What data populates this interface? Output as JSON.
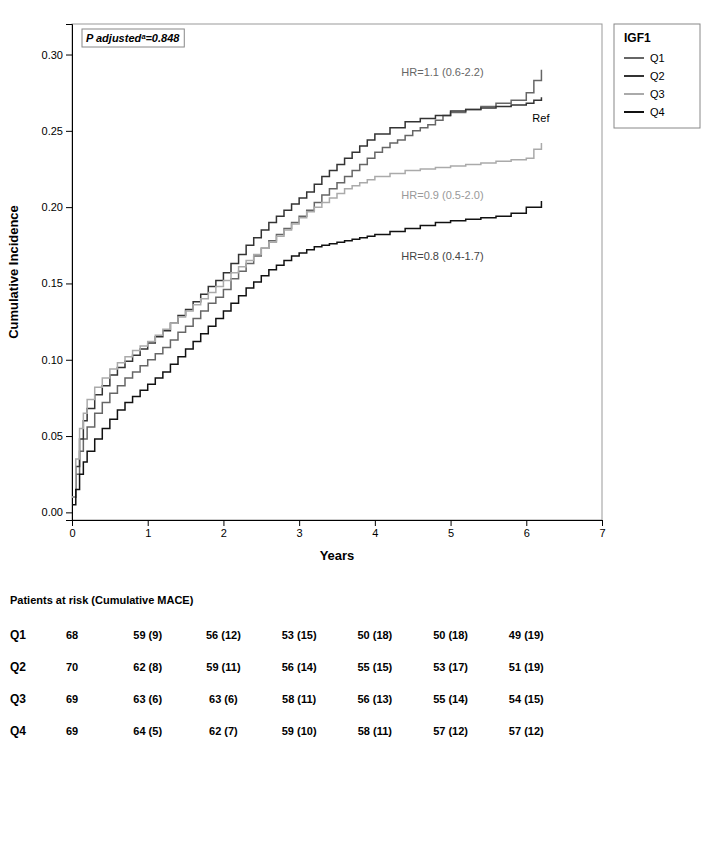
{
  "chart_data": {
    "type": "step",
    "xlabel": "Years",
    "ylabel": "Cumulative Incidence",
    "xlim": [
      0,
      7
    ],
    "ylim": [
      -0.005,
      0.32
    ],
    "xticks": [
      0,
      1,
      2,
      3,
      4,
      5,
      6,
      7
    ],
    "yticks": [
      {
        "value": 0.0,
        "label": "0.00"
      },
      0.05,
      {
        "value": 0.1,
        "label": "0.10"
      },
      0.15,
      {
        "value": 0.2,
        "label": "0.20"
      },
      0.25,
      {
        "value": 0.3,
        "label": "0.30"
      }
    ],
    "grid": false,
    "legend": "right",
    "legend_title": "IGF1",
    "annotations": [
      {
        "text": "P adjustedᵃ=0.848"
      },
      {
        "text": "HR=1.1 (0.6-2.2)",
        "x": 4.35,
        "y": 0.288,
        "color": "#666666"
      },
      {
        "text": "Ref",
        "x": 6.08,
        "y": 0.258,
        "color": "#000000"
      },
      {
        "text": "HR=0.9 (0.5-2.0)",
        "x": 4.35,
        "y": 0.207,
        "color": "#999999"
      },
      {
        "text": "HR=0.8 (0.4-1.7)",
        "x": 4.35,
        "y": 0.167,
        "color": "#444444"
      }
    ],
    "series": [
      {
        "name": "Q1",
        "color": "#666666",
        "x": [
          0,
          0.05,
          0.1,
          0.15,
          0.2,
          0.3,
          0.4,
          0.5,
          0.6,
          0.7,
          0.8,
          0.9,
          1.0,
          1.1,
          1.2,
          1.3,
          1.4,
          1.5,
          1.6,
          1.7,
          1.8,
          1.9,
          2.0,
          2.1,
          2.2,
          2.3,
          2.4,
          2.5,
          2.6,
          2.7,
          2.8,
          2.9,
          3.0,
          3.1,
          3.2,
          3.3,
          3.4,
          3.5,
          3.6,
          3.7,
          3.8,
          3.9,
          4.0,
          4.1,
          4.2,
          4.3,
          4.4,
          4.5,
          4.6,
          4.7,
          4.8,
          4.9,
          5.0,
          5.2,
          5.4,
          5.6,
          5.8,
          6.0,
          6.1,
          6.2
        ],
        "values": [
          0.01,
          0.025,
          0.04,
          0.048,
          0.056,
          0.065,
          0.072,
          0.078,
          0.083,
          0.088,
          0.092,
          0.096,
          0.1,
          0.104,
          0.108,
          0.113,
          0.118,
          0.122,
          0.127,
          0.132,
          0.137,
          0.141,
          0.146,
          0.153,
          0.158,
          0.163,
          0.168,
          0.173,
          0.178,
          0.182,
          0.186,
          0.19,
          0.194,
          0.198,
          0.203,
          0.208,
          0.212,
          0.216,
          0.22,
          0.224,
          0.228,
          0.232,
          0.236,
          0.239,
          0.242,
          0.244,
          0.247,
          0.25,
          0.252,
          0.254,
          0.257,
          0.26,
          0.262,
          0.264,
          0.266,
          0.268,
          0.27,
          0.275,
          0.283,
          0.29
        ]
      },
      {
        "name": "Q2",
        "color": "#333333",
        "x": [
          0,
          0.05,
          0.1,
          0.15,
          0.2,
          0.3,
          0.4,
          0.5,
          0.6,
          0.7,
          0.8,
          0.9,
          1.0,
          1.1,
          1.2,
          1.3,
          1.4,
          1.5,
          1.6,
          1.7,
          1.8,
          1.9,
          2.0,
          2.1,
          2.2,
          2.3,
          2.4,
          2.5,
          2.6,
          2.7,
          2.8,
          2.9,
          3.0,
          3.1,
          3.2,
          3.3,
          3.4,
          3.5,
          3.6,
          3.7,
          3.8,
          3.9,
          4.0,
          4.2,
          4.4,
          4.6,
          4.8,
          5.0,
          5.2,
          5.4,
          5.6,
          5.8,
          6.0,
          6.1,
          6.2
        ],
        "values": [
          0.01,
          0.03,
          0.048,
          0.06,
          0.068,
          0.077,
          0.083,
          0.09,
          0.095,
          0.099,
          0.103,
          0.107,
          0.111,
          0.115,
          0.119,
          0.124,
          0.129,
          0.133,
          0.138,
          0.143,
          0.148,
          0.152,
          0.157,
          0.163,
          0.169,
          0.175,
          0.18,
          0.185,
          0.19,
          0.194,
          0.198,
          0.202,
          0.206,
          0.21,
          0.215,
          0.22,
          0.224,
          0.228,
          0.232,
          0.236,
          0.24,
          0.244,
          0.248,
          0.252,
          0.256,
          0.258,
          0.26,
          0.263,
          0.264,
          0.265,
          0.266,
          0.267,
          0.268,
          0.27,
          0.272
        ]
      },
      {
        "name": "Q3",
        "color": "#aaaaaa",
        "x": [
          0,
          0.05,
          0.1,
          0.15,
          0.2,
          0.3,
          0.4,
          0.5,
          0.6,
          0.7,
          0.8,
          0.9,
          1.0,
          1.1,
          1.2,
          1.3,
          1.4,
          1.5,
          1.6,
          1.7,
          1.8,
          1.9,
          2.0,
          2.1,
          2.2,
          2.3,
          2.4,
          2.5,
          2.6,
          2.7,
          2.8,
          2.9,
          3.0,
          3.1,
          3.2,
          3.3,
          3.4,
          3.5,
          3.6,
          3.7,
          3.8,
          3.9,
          4.0,
          4.2,
          4.4,
          4.6,
          4.8,
          5.0,
          5.2,
          5.4,
          5.6,
          5.8,
          6.0,
          6.1,
          6.2
        ],
        "values": [
          0.01,
          0.035,
          0.055,
          0.065,
          0.074,
          0.082,
          0.088,
          0.094,
          0.098,
          0.102,
          0.106,
          0.109,
          0.112,
          0.116,
          0.12,
          0.124,
          0.128,
          0.132,
          0.136,
          0.14,
          0.144,
          0.148,
          0.152,
          0.157,
          0.161,
          0.165,
          0.169,
          0.173,
          0.177,
          0.181,
          0.185,
          0.189,
          0.193,
          0.197,
          0.2,
          0.203,
          0.206,
          0.209,
          0.212,
          0.214,
          0.216,
          0.218,
          0.22,
          0.222,
          0.224,
          0.225,
          0.226,
          0.227,
          0.228,
          0.229,
          0.23,
          0.231,
          0.232,
          0.238,
          0.242
        ]
      },
      {
        "name": "Q4",
        "color": "#111111",
        "x": [
          0,
          0.05,
          0.1,
          0.15,
          0.2,
          0.3,
          0.4,
          0.5,
          0.6,
          0.7,
          0.8,
          0.9,
          1.0,
          1.1,
          1.2,
          1.3,
          1.4,
          1.5,
          1.6,
          1.7,
          1.8,
          1.9,
          2.0,
          2.1,
          2.2,
          2.3,
          2.4,
          2.5,
          2.6,
          2.7,
          2.8,
          2.9,
          3.0,
          3.1,
          3.2,
          3.3,
          3.4,
          3.5,
          3.6,
          3.7,
          3.8,
          3.9,
          4.0,
          4.2,
          4.4,
          4.6,
          4.8,
          5.0,
          5.2,
          5.4,
          5.6,
          5.8,
          6.0,
          6.1,
          6.2
        ],
        "values": [
          0.005,
          0.015,
          0.025,
          0.033,
          0.04,
          0.048,
          0.055,
          0.061,
          0.067,
          0.072,
          0.076,
          0.08,
          0.084,
          0.088,
          0.092,
          0.097,
          0.102,
          0.107,
          0.112,
          0.117,
          0.122,
          0.127,
          0.132,
          0.137,
          0.142,
          0.147,
          0.151,
          0.155,
          0.159,
          0.162,
          0.165,
          0.168,
          0.17,
          0.172,
          0.174,
          0.175,
          0.176,
          0.177,
          0.178,
          0.179,
          0.18,
          0.181,
          0.182,
          0.184,
          0.186,
          0.188,
          0.19,
          0.191,
          0.192,
          0.193,
          0.194,
          0.196,
          0.2,
          0.2,
          0.204
        ]
      }
    ],
    "risk_table": {
      "header": "Patients at risk (Cumulative MACE)",
      "times": [
        0,
        1,
        2,
        3,
        4,
        5,
        6
      ],
      "rows": [
        {
          "label": "Q1",
          "values": [
            "68",
            "59 (9)",
            "56 (12)",
            "53 (15)",
            "50 (18)",
            "50 (18)",
            "49 (19)"
          ]
        },
        {
          "label": "Q2",
          "values": [
            "70",
            "62 (8)",
            "59 (11)",
            "56 (14)",
            "55 (15)",
            "53 (17)",
            "51 (19)"
          ]
        },
        {
          "label": "Q3",
          "values": [
            "69",
            "63 (6)",
            "63 (6)",
            "58 (11)",
            "56 (13)",
            "55 (14)",
            "54 (15)"
          ]
        },
        {
          "label": "Q4",
          "values": [
            "69",
            "64 (5)",
            "62 (7)",
            "59 (10)",
            "58 (11)",
            "57 (12)",
            "57 (12)"
          ]
        }
      ]
    }
  }
}
